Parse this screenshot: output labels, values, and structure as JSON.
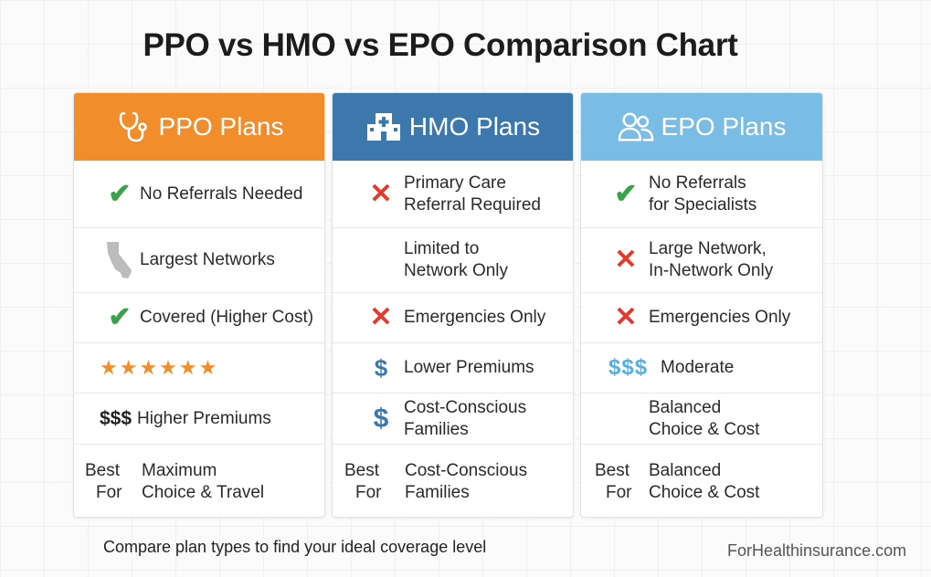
{
  "title": "PPO vs HMO vs EPO Comparison Chart",
  "colors": {
    "ppo": "#f28d2c",
    "hmo": "#3d78ad",
    "epo": "#79bde4",
    "check": "#3aa24a",
    "cross": "#e43a2c"
  },
  "ppo": {
    "header": "PPO Plans",
    "header_icon": "stethoscope-icon",
    "rows": [
      {
        "icon": "check-icon",
        "text": "No Referrals Needed"
      },
      {
        "icon": "state-map-icon",
        "text": "Largest Networks"
      },
      {
        "icon": "check-icon",
        "text": "Covered (Higher Cost)"
      },
      {
        "icon": "stars-icon",
        "stars": "★★★★★★",
        "text": ""
      },
      {
        "icon_text": "$$$",
        "text": "Higher Premiums"
      },
      {
        "best_label": "Best For",
        "text_line1": "Maximum",
        "text_line2": "Choice & Travel"
      }
    ]
  },
  "hmo": {
    "header": "HMO Plans",
    "header_icon": "hospital-icon",
    "rows": [
      {
        "icon": "cross-icon",
        "text_line1": "Primary Care",
        "text_line2": "Referral Required"
      },
      {
        "text_line1": "Limited to",
        "text_line2": "Network Only"
      },
      {
        "icon": "cross-icon",
        "text": "Emergencies Only"
      },
      {
        "icon_text": "$",
        "text": "Lower Premiums"
      },
      {
        "icon_text": "$",
        "text_line1": "Cost-Conscious",
        "text_line2": "Families"
      },
      {
        "best_label": "Best For",
        "text_line1": "Cost-Conscious",
        "text_line2": "Families"
      }
    ]
  },
  "epo": {
    "header": "EPO Plans",
    "header_icon": "people-icon",
    "rows": [
      {
        "icon": "check-icon",
        "text_line1": "No Referrals",
        "text_line2": "for Specialists"
      },
      {
        "icon": "cross-icon",
        "text_line1": "Large Network,",
        "text_line2": "In-Network Only"
      },
      {
        "icon": "cross-icon",
        "text": "Emergencies Only"
      },
      {
        "icon_text": "$$$",
        "text": "Moderate"
      },
      {
        "text_line1": "Balanced",
        "text_line2": "Choice & Cost"
      },
      {
        "best_label": "Best For",
        "text_line1": "Balanced",
        "text_line2": "Choice & Cost"
      }
    ]
  },
  "symbols": {
    "check": "✔",
    "cross": "✕"
  },
  "best_word1": "Best",
  "best_word2": "For",
  "footer": "Compare plan types to find your ideal coverage level",
  "brand": "ForHealthinsurance.com"
}
